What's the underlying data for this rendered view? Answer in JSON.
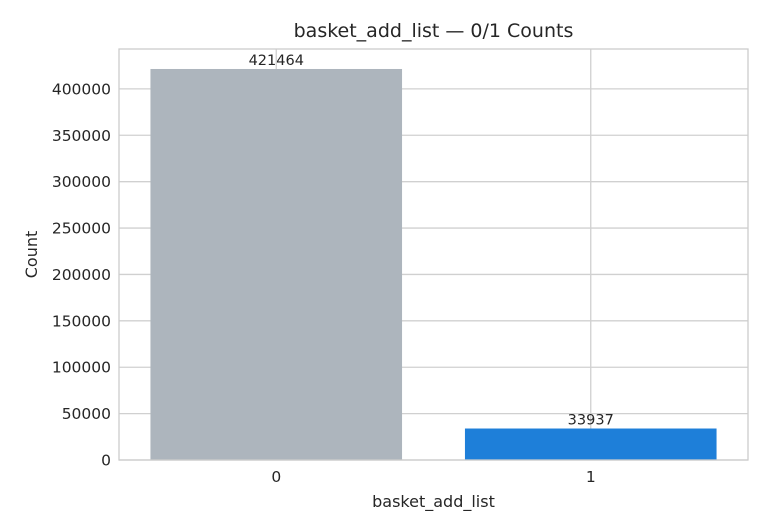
{
  "chart_data": {
    "type": "bar",
    "title": "basket_add_list — 0/1 Counts",
    "xlabel": "basket_add_list",
    "ylabel": "Count",
    "categories": [
      "0",
      "1"
    ],
    "values": [
      421464,
      33937
    ],
    "data_labels": [
      "421464",
      "33937"
    ],
    "bar_colors": [
      "#adb5bd",
      "#1e7fd9"
    ],
    "ylim": [
      0,
      443000
    ],
    "yticks": [
      0,
      50000,
      100000,
      150000,
      200000,
      250000,
      300000,
      350000,
      400000
    ],
    "ytick_labels": [
      "0",
      "50000",
      "100000",
      "150000",
      "200000",
      "250000",
      "300000",
      "350000",
      "400000"
    ],
    "grid": true,
    "legend": "none"
  }
}
